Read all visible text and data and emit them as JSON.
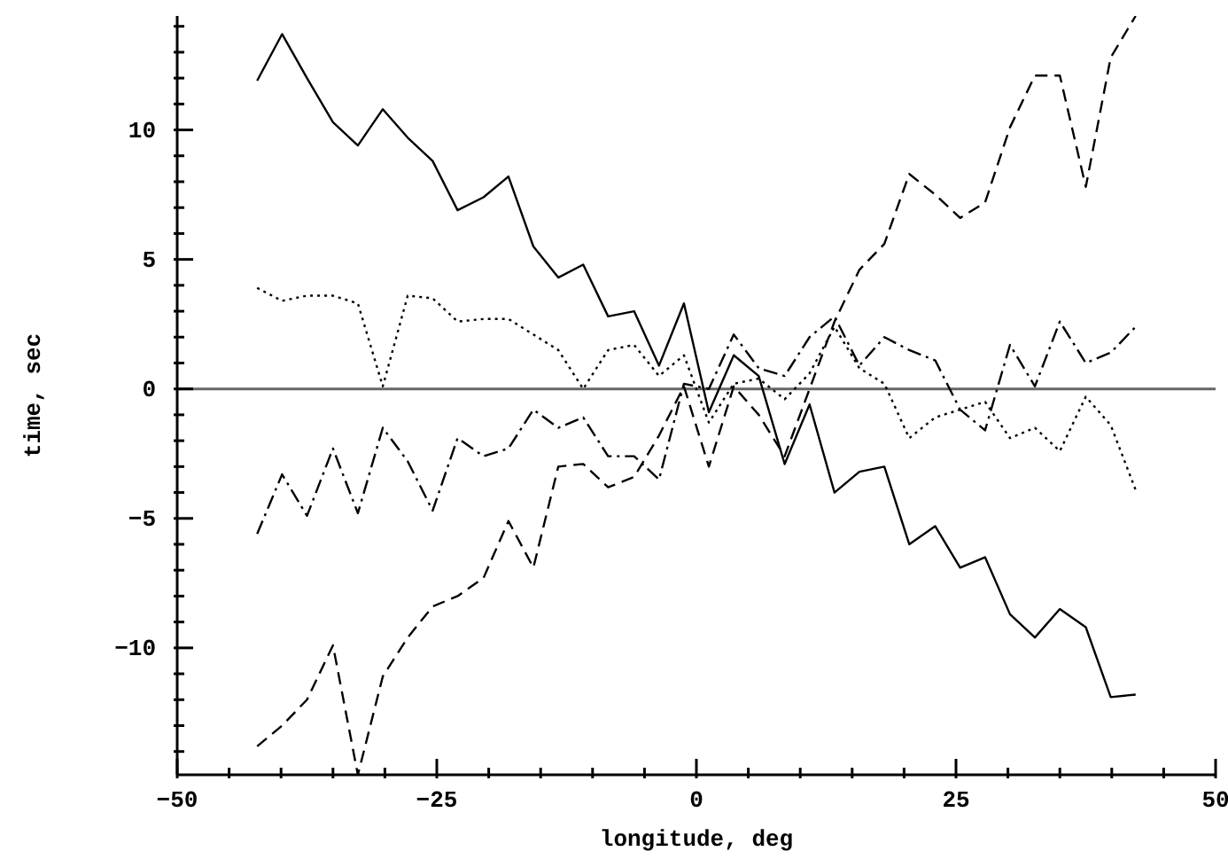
{
  "chart_data": {
    "type": "line",
    "xlabel": "longitude, deg",
    "ylabel": "time, sec",
    "x": [
      -42.3,
      -39.9,
      -37.5,
      -35.0,
      -32.6,
      -30.2,
      -27.8,
      -25.4,
      -23.0,
      -20.5,
      -18.1,
      -15.7,
      -13.3,
      -10.9,
      -8.5,
      -6.0,
      -3.6,
      -1.2,
      1.2,
      3.6,
      6.0,
      8.5,
      10.9,
      13.3,
      15.7,
      18.1,
      20.5,
      23.0,
      25.4,
      27.8,
      30.2,
      32.6,
      35.0,
      37.5,
      39.9,
      42.3
    ],
    "series": [
      {
        "color": "#000000",
        "line_style": "solid",
        "values": [
          11.9,
          13.7,
          12.0,
          10.3,
          9.4,
          10.8,
          9.7,
          8.8,
          6.9,
          7.4,
          8.2,
          5.5,
          4.3,
          4.8,
          2.8,
          3.0,
          0.9,
          3.3,
          -0.9,
          1.3,
          0.5,
          -2.9,
          -0.6,
          -4.0,
          -3.2,
          -3.0,
          -6.0,
          -5.3,
          -6.9,
          -6.5,
          -8.7,
          -9.6,
          -8.5,
          -9.2,
          -11.9,
          -11.8
        ]
      },
      {
        "color": "#000000",
        "line_style": "dashed",
        "values": [
          -13.8,
          -13.0,
          -12.0,
          -9.9,
          -14.9,
          -11.1,
          -9.6,
          -8.4,
          -8.0,
          -7.3,
          -5.1,
          -6.9,
          -3.0,
          -2.9,
          -3.8,
          -3.4,
          -1.8,
          0.1,
          -3.0,
          0.1,
          -1.0,
          -2.6,
          0.0,
          2.6,
          4.6,
          5.6,
          8.3,
          7.5,
          6.6,
          7.2,
          10.1,
          12.1,
          12.1,
          7.8,
          12.8,
          14.4
        ]
      },
      {
        "color": "#000000",
        "line_style": "dotted",
        "values": [
          3.9,
          3.4,
          3.6,
          3.6,
          3.3,
          0.1,
          3.6,
          3.5,
          2.6,
          2.7,
          2.7,
          2.1,
          1.5,
          0.0,
          1.5,
          1.7,
          0.5,
          1.3,
          -1.3,
          0.2,
          0.4,
          -0.4,
          0.6,
          2.4,
          0.8,
          0.2,
          -1.9,
          -1.1,
          -0.8,
          -0.5,
          -1.9,
          -1.5,
          -2.4,
          -0.3,
          -1.4,
          -3.9
        ]
      },
      {
        "color": "#000000",
        "line_style": "dashdot",
        "values": [
          -5.6,
          -3.3,
          -4.9,
          -2.3,
          -4.8,
          -1.5,
          -2.8,
          -4.7,
          -1.9,
          -2.6,
          -2.3,
          -0.8,
          -1.5,
          -1.1,
          -2.6,
          -2.6,
          -3.5,
          0.2,
          0.0,
          2.1,
          0.8,
          0.5,
          2.0,
          2.8,
          0.9,
          2.0,
          1.5,
          1.1,
          -0.8,
          -1.6,
          1.7,
          0.1,
          2.6,
          1.0,
          1.4,
          2.4
        ]
      }
    ],
    "xlim": [
      -50,
      50
    ],
    "xticks": [
      -50,
      {
        "value": -45,
        "label": null
      },
      {
        "value": -40,
        "label": null
      },
      {
        "value": -35,
        "label": null
      },
      {
        "value": -30,
        "label": null
      },
      -25,
      {
        "value": -20,
        "label": null
      },
      {
        "value": -15,
        "label": null
      },
      {
        "value": -10,
        "label": null
      },
      {
        "value": -5,
        "label": null
      },
      0,
      {
        "value": 5,
        "label": null
      },
      {
        "value": 10,
        "label": null
      },
      {
        "value": 15,
        "label": null
      },
      {
        "value": 20,
        "label": null
      },
      25,
      {
        "value": 30,
        "label": null
      },
      {
        "value": 35,
        "label": null
      },
      {
        "value": 40,
        "label": null
      },
      {
        "value": 45,
        "label": null
      },
      50
    ],
    "ylim": [
      -14.9,
      14.4
    ],
    "yticks": [
      {
        "value": -14,
        "label": null
      },
      {
        "value": -13,
        "label": null
      },
      {
        "value": -12,
        "label": null
      },
      {
        "value": -11,
        "label": null
      },
      -10,
      {
        "value": -9,
        "label": null
      },
      {
        "value": -8,
        "label": null
      },
      {
        "value": -7,
        "label": null
      },
      {
        "value": -6,
        "label": null
      },
      -5,
      {
        "value": -4,
        "label": null
      },
      {
        "value": -3,
        "label": null
      },
      {
        "value": -2,
        "label": null
      },
      {
        "value": -1,
        "label": null
      },
      0,
      {
        "value": 1,
        "label": null
      },
      {
        "value": 2,
        "label": null
      },
      {
        "value": 3,
        "label": null
      },
      {
        "value": 4,
        "label": null
      },
      5,
      {
        "value": 6,
        "label": null
      },
      {
        "value": 7,
        "label": null
      },
      {
        "value": 8,
        "label": null
      },
      {
        "value": 9,
        "label": null
      },
      10,
      {
        "value": 11,
        "label": null
      },
      {
        "value": 12,
        "label": null
      },
      {
        "value": 13,
        "label": null
      },
      {
        "value": 14,
        "label": null
      }
    ],
    "ref_lines": [
      {
        "axis": "y",
        "value": 0,
        "label": null,
        "color": "#666666"
      }
    ],
    "grid": false,
    "legend": false,
    "marker": "none"
  }
}
